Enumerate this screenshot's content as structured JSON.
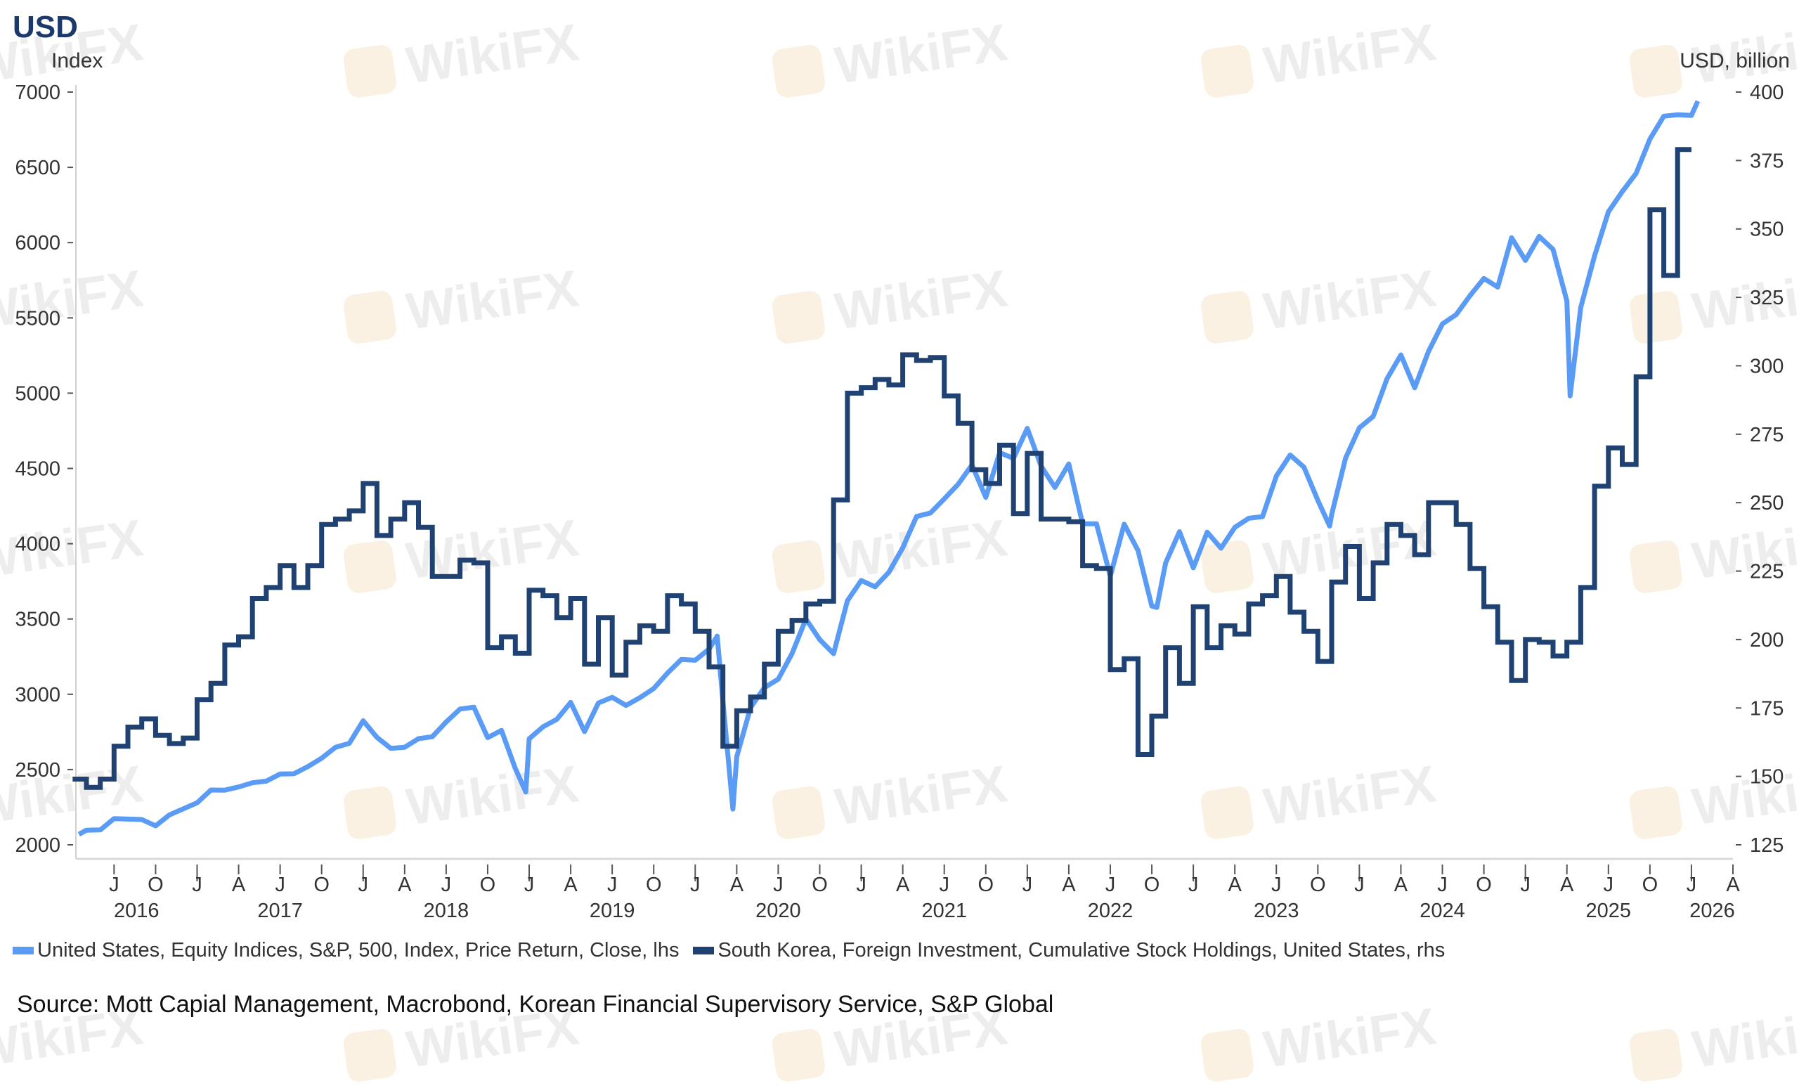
{
  "header": {
    "title": "USD",
    "lhs_unit": "Index",
    "rhs_unit": "USD, billion"
  },
  "watermark": "WikiFX",
  "source": "Source: Mott Capial Management, Macrobond, Korean Financial Supervisory Service, S&P Global",
  "chart_data": {
    "type": "line",
    "title": "USD",
    "ylabel_left": "Index",
    "ylabel_right": "USD, billion",
    "ylim_left": [
      2000,
      7000
    ],
    "ylim_right": [
      125,
      400
    ],
    "xlim": [
      "2016-04",
      "2026-04"
    ],
    "yticks_left": [
      "2000",
      "2500",
      "3000",
      "3500",
      "4000",
      "4500",
      "5000",
      "5500",
      "6000",
      "6500",
      "7000"
    ],
    "yticks_right": [
      "125",
      "150",
      "175",
      "200",
      "225",
      "250",
      "275",
      "300",
      "325",
      "350",
      "375",
      "400"
    ],
    "xticks": [
      {
        "date": "2016-07",
        "label": "J"
      },
      {
        "date": "2016-10",
        "label": "O"
      },
      {
        "date": "2017-01",
        "label": "J"
      },
      {
        "date": "2017-04",
        "label": "A"
      },
      {
        "date": "2017-07",
        "label": "J"
      },
      {
        "date": "2017-10",
        "label": "O"
      },
      {
        "date": "2018-01",
        "label": "J"
      },
      {
        "date": "2018-04",
        "label": "A"
      },
      {
        "date": "2018-07",
        "label": "J"
      },
      {
        "date": "2018-10",
        "label": "O"
      },
      {
        "date": "2019-01",
        "label": "J"
      },
      {
        "date": "2019-04",
        "label": "A"
      },
      {
        "date": "2019-07",
        "label": "J"
      },
      {
        "date": "2019-10",
        "label": "O"
      },
      {
        "date": "2020-01",
        "label": "J"
      },
      {
        "date": "2020-04",
        "label": "A"
      },
      {
        "date": "2020-07",
        "label": "J"
      },
      {
        "date": "2020-10",
        "label": "O"
      },
      {
        "date": "2021-01",
        "label": "J"
      },
      {
        "date": "2021-04",
        "label": "A"
      },
      {
        "date": "2021-07",
        "label": "J"
      },
      {
        "date": "2021-10",
        "label": "O"
      },
      {
        "date": "2022-01",
        "label": "J"
      },
      {
        "date": "2022-04",
        "label": "A"
      },
      {
        "date": "2022-07",
        "label": "J"
      },
      {
        "date": "2022-10",
        "label": "O"
      },
      {
        "date": "2023-01",
        "label": "J"
      },
      {
        "date": "2023-04",
        "label": "A"
      },
      {
        "date": "2023-07",
        "label": "J"
      },
      {
        "date": "2023-10",
        "label": "O"
      },
      {
        "date": "2024-01",
        "label": "J"
      },
      {
        "date": "2024-04",
        "label": "A"
      },
      {
        "date": "2024-07",
        "label": "J"
      },
      {
        "date": "2024-10",
        "label": "O"
      },
      {
        "date": "2025-01",
        "label": "J"
      },
      {
        "date": "2025-04",
        "label": "A"
      },
      {
        "date": "2025-07",
        "label": "J"
      },
      {
        "date": "2025-10",
        "label": "O"
      },
      {
        "date": "2026-01",
        "label": "J"
      },
      {
        "date": "2026-04",
        "label": "A"
      }
    ],
    "year_labels": [
      "2016",
      "2017",
      "2018",
      "2019",
      "2020",
      "2021",
      "2022",
      "2023",
      "2024",
      "2025",
      "2026"
    ],
    "grid": false,
    "legend_position": "bottom",
    "series": [
      {
        "name": "United States, Equity Indices, S&P, 500, Index, Price Return, Close, lhs",
        "axis": "left",
        "color": "#5a9bf5",
        "x": [
          "2016-04-15",
          "2016-05",
          "2016-06",
          "2016-07",
          "2016-08",
          "2016-09",
          "2016-10",
          "2016-11",
          "2016-12",
          "2017-01",
          "2017-02",
          "2017-03",
          "2017-04",
          "2017-05",
          "2017-06",
          "2017-07",
          "2017-08",
          "2017-09",
          "2017-10",
          "2017-11",
          "2017-12",
          "2018-01",
          "2018-02",
          "2018-03",
          "2018-04",
          "2018-05",
          "2018-06",
          "2018-07",
          "2018-08",
          "2018-09",
          "2018-10",
          "2018-11",
          "2018-12",
          "2018-12-24",
          "2019-01",
          "2019-02",
          "2019-03",
          "2019-04",
          "2019-05",
          "2019-06",
          "2019-07",
          "2019-08",
          "2019-09",
          "2019-10",
          "2019-11",
          "2019-12",
          "2020-01",
          "2020-02",
          "2020-02-19",
          "2020-03",
          "2020-03-23",
          "2020-04",
          "2020-05",
          "2020-06",
          "2020-07",
          "2020-08",
          "2020-09",
          "2020-10",
          "2020-11",
          "2020-12",
          "2021-01",
          "2021-02",
          "2021-03",
          "2021-04",
          "2021-05",
          "2021-06",
          "2021-07",
          "2021-08",
          "2021-09",
          "2021-10",
          "2021-11",
          "2021-12",
          "2022-01",
          "2022-02",
          "2022-03",
          "2022-04",
          "2022-05",
          "2022-06",
          "2022-07",
          "2022-08",
          "2022-09",
          "2022-10",
          "2022-10-12",
          "2022-11",
          "2022-12",
          "2023-01",
          "2023-02",
          "2023-03",
          "2023-04",
          "2023-05",
          "2023-06",
          "2023-07",
          "2023-08",
          "2023-09",
          "2023-10",
          "2023-10-27",
          "2023-11",
          "2023-12",
          "2024-01",
          "2024-02",
          "2024-03",
          "2024-04",
          "2024-05",
          "2024-06",
          "2024-07",
          "2024-08",
          "2024-09",
          "2024-10",
          "2024-11",
          "2024-12",
          "2025-01",
          "2025-02",
          "2025-03",
          "2025-04",
          "2025-04-08",
          "2025-05",
          "2025-06",
          "2025-07",
          "2025-08",
          "2025-09",
          "2025-10",
          "2025-11",
          "2025-12",
          "2026-01",
          "2026-01-15"
        ],
        "y": [
          2070,
          2097,
          2099,
          2174,
          2171,
          2168,
          2126,
          2199,
          2239,
          2279,
          2364,
          2363,
          2384,
          2412,
          2423,
          2470,
          2472,
          2519,
          2575,
          2648,
          2674,
          2824,
          2714,
          2641,
          2648,
          2705,
          2718,
          2816,
          2902,
          2914,
          2712,
          2760,
          2507,
          2351,
          2704,
          2784,
          2834,
          2946,
          2752,
          2942,
          2980,
          2926,
          2977,
          3038,
          3141,
          3231,
          3226,
          3300,
          3386,
          2954,
          2237,
          2585,
          2912,
          3044,
          3100,
          3271,
          3500,
          3363,
          3270,
          3622,
          3756,
          3714,
          3811,
          3973,
          4181,
          4204,
          4298,
          4395,
          4523,
          4308,
          4605,
          4567,
          4766,
          4516,
          4374,
          4530,
          4132,
          4132,
          3785,
          4130,
          3955,
          3586,
          3577,
          3872,
          4080,
          3840,
          4077,
          3970,
          4109,
          4169,
          4180,
          4450,
          4589,
          4508,
          4288,
          4117,
          4194,
          4568,
          4770,
          4846,
          5096,
          5254,
          5036,
          5278,
          5460,
          5522,
          5648,
          5762,
          5705,
          6032,
          5882,
          6041,
          5955,
          5612,
          4982,
          5569,
          5912,
          6205,
          6339,
          6460,
          6688,
          6840,
          6849,
          6845,
          6940
        ]
      },
      {
        "name": "South Korea, Foreign Investment, Cumulative Stock Holdings, United States, rhs",
        "axis": "right",
        "color": "#1f4272",
        "x": [
          "2016-04",
          "2016-05",
          "2016-06",
          "2016-07",
          "2016-08",
          "2016-09",
          "2016-10",
          "2016-11",
          "2016-12",
          "2017-01",
          "2017-02",
          "2017-03",
          "2017-04",
          "2017-05",
          "2017-06",
          "2017-07",
          "2017-08",
          "2017-09",
          "2017-10",
          "2017-11",
          "2017-12",
          "2018-01",
          "2018-02",
          "2018-03",
          "2018-04",
          "2018-05",
          "2018-06",
          "2018-07",
          "2018-08",
          "2018-09",
          "2018-10",
          "2018-11",
          "2018-12",
          "2019-01",
          "2019-02",
          "2019-03",
          "2019-04",
          "2019-05",
          "2019-06",
          "2019-07",
          "2019-08",
          "2019-09",
          "2019-10",
          "2019-11",
          "2019-12",
          "2020-01",
          "2020-02",
          "2020-03",
          "2020-04",
          "2020-05",
          "2020-06",
          "2020-07",
          "2020-08",
          "2020-09",
          "2020-10",
          "2020-11",
          "2020-12",
          "2021-01",
          "2021-02",
          "2021-03",
          "2021-04",
          "2021-05",
          "2021-06",
          "2021-07",
          "2021-08",
          "2021-09",
          "2021-10",
          "2021-11",
          "2021-12",
          "2022-01",
          "2022-02",
          "2022-03",
          "2022-04",
          "2022-05",
          "2022-06",
          "2022-07",
          "2022-08",
          "2022-09",
          "2022-10",
          "2022-11",
          "2022-12",
          "2023-01",
          "2023-02",
          "2023-03",
          "2023-04",
          "2023-05",
          "2023-06",
          "2023-07",
          "2023-08",
          "2023-09",
          "2023-10",
          "2023-11",
          "2023-12",
          "2024-01",
          "2024-02",
          "2024-03",
          "2024-04",
          "2024-05",
          "2024-06",
          "2024-07",
          "2024-08",
          "2024-09",
          "2024-10",
          "2024-11",
          "2024-12",
          "2025-01",
          "2025-02",
          "2025-03",
          "2025-04",
          "2025-05",
          "2025-06",
          "2025-07",
          "2025-08",
          "2025-09",
          "2025-10",
          "2025-11",
          "2025-12"
        ],
        "y": [
          149,
          146,
          149,
          161,
          168,
          171,
          165,
          162,
          164,
          178,
          184,
          198,
          201,
          215,
          219,
          227,
          219,
          227,
          242,
          244,
          247,
          257,
          238,
          244,
          250,
          241,
          223,
          223,
          229,
          228,
          197,
          201,
          195,
          218,
          216,
          208,
          215,
          191,
          208,
          187,
          199,
          205,
          203,
          216,
          213,
          203,
          190,
          161,
          174,
          179,
          191,
          203,
          207,
          213,
          214,
          251,
          290,
          292,
          295,
          293,
          304,
          302,
          303,
          289,
          279,
          262,
          257,
          271,
          246,
          268,
          244,
          244,
          243,
          227,
          226,
          189,
          193,
          158,
          172,
          197,
          184,
          212,
          197,
          205,
          202,
          213,
          216,
          223,
          210,
          203,
          192,
          221,
          234,
          215,
          228,
          242,
          238,
          231,
          250,
          250,
          242,
          226,
          212,
          199,
          185,
          200,
          199,
          194,
          199,
          219,
          256,
          270,
          264,
          296,
          357,
          333,
          379
        ]
      }
    ]
  }
}
